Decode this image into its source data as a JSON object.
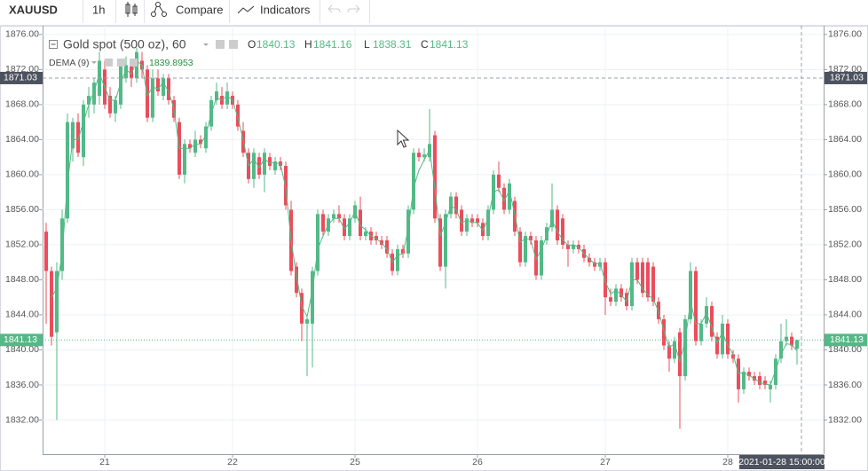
{
  "toolbar": {
    "symbol": "XAUUSD",
    "interval": "1h",
    "compare": "Compare",
    "indicators": "Indicators"
  },
  "chart_data": {
    "type": "candlestick",
    "title": "Gold spot (500 oz), 60",
    "ohlc_labels": [
      "O",
      "H",
      "L",
      "C"
    ],
    "indicator_name": "DEMA (9)",
    "up_color": "#53b987",
    "down_color": "#eb4d5c",
    "dema_color": "#53b987",
    "ylim": [
      1828.1,
      1877.0
    ],
    "yticks": [
      {
        "value": 1832,
        "label": "1832.00"
      },
      {
        "value": 1836,
        "label": "1836.00"
      },
      {
        "value": 1840,
        "label": "1840.00"
      },
      {
        "value": 1844,
        "label": "1844.00"
      },
      {
        "value": 1848,
        "label": "1848.00"
      },
      {
        "value": 1852,
        "label": "1852.00"
      },
      {
        "value": 1856,
        "label": "1856.00"
      },
      {
        "value": 1860,
        "label": "1860.00"
      },
      {
        "value": 1864,
        "label": "1864.00"
      },
      {
        "value": 1868,
        "label": "1868.00"
      },
      {
        "value": 1872,
        "label": "1872.00"
      },
      {
        "value": 1876,
        "label": "1876.00"
      }
    ],
    "grid": true,
    "crosshair": {
      "price": 1871.03,
      "time": "2021-01-28 15:00:00"
    },
    "categories": [
      null,
      null,
      null,
      null,
      null,
      null,
      null,
      null,
      null,
      null,
      null,
      "21",
      null,
      null,
      null,
      null,
      null,
      null,
      null,
      null,
      null,
      null,
      null,
      null,
      null,
      null,
      null,
      null,
      null,
      null,
      null,
      null,
      null,
      null,
      null,
      "22",
      null,
      null,
      null,
      null,
      null,
      null,
      null,
      null,
      null,
      null,
      null,
      null,
      null,
      null,
      null,
      null,
      null,
      null,
      null,
      null,
      null,
      null,
      "25",
      null,
      null,
      null,
      null,
      null,
      null,
      null,
      null,
      null,
      null,
      null,
      null,
      null,
      null,
      null,
      null,
      null,
      null,
      null,
      null,
      null,
      null,
      "26",
      null,
      null,
      null,
      null,
      null,
      null,
      null,
      null,
      null,
      null,
      null,
      null,
      null,
      null,
      null,
      null,
      null,
      null,
      null,
      null,
      null,
      null,
      null,
      "27",
      null,
      null,
      null,
      null,
      null,
      null,
      null,
      null,
      null,
      null,
      null,
      null,
      null,
      null,
      null,
      null,
      null,
      null,
      null,
      null,
      null,
      null,
      "28",
      null,
      null,
      null,
      null,
      null,
      null,
      null,
      null,
      null,
      null,
      null,
      null,
      null
    ],
    "candles": [
      [
        1853.5,
        1854.5,
        1843,
        1849
      ],
      [
        1849,
        1849.5,
        1840.5,
        1841.5
      ],
      [
        1842,
        1850,
        1832,
        1849
      ],
      [
        1849,
        1856,
        1848,
        1855
      ],
      [
        1855,
        1867,
        1854.5,
        1866
      ],
      [
        1863,
        1866.5,
        1861.5,
        1866
      ],
      [
        1866,
        1867,
        1862,
        1862.5
      ],
      [
        1862,
        1868.5,
        1861,
        1868
      ],
      [
        1868,
        1870,
        1866.5,
        1869
      ],
      [
        1868,
        1871,
        1867,
        1870.5
      ],
      [
        1869,
        1874,
        1868,
        1873
      ],
      [
        1872,
        1873,
        1867.5,
        1868
      ],
      [
        1869,
        1870,
        1866.5,
        1867
      ],
      [
        1867,
        1869,
        1866,
        1868.5
      ],
      [
        1868,
        1873,
        1867.5,
        1872.5
      ],
      [
        1871,
        1873.5,
        1870.5,
        1872.5
      ],
      [
        1872.5,
        1873,
        1870,
        1871
      ],
      [
        1871,
        1874.5,
        1870.5,
        1874
      ],
      [
        1873,
        1874,
        1871,
        1872
      ],
      [
        1872,
        1872.5,
        1866,
        1866.5
      ],
      [
        1866.5,
        1872,
        1866,
        1871
      ],
      [
        1871,
        1872,
        1869,
        1869.5
      ],
      [
        1869,
        1871.5,
        1868.5,
        1871
      ],
      [
        1871,
        1871.5,
        1868,
        1868.5
      ],
      [
        1868.5,
        1869,
        1866,
        1866.5
      ],
      [
        1866,
        1866.5,
        1859.5,
        1860
      ],
      [
        1860,
        1864,
        1859,
        1863.5
      ],
      [
        1863.5,
        1864,
        1862.5,
        1863
      ],
      [
        1862.5,
        1865,
        1862,
        1864
      ],
      [
        1864,
        1864.5,
        1863,
        1863.5
      ],
      [
        1863,
        1866,
        1862.5,
        1865.5
      ],
      [
        1865.5,
        1869,
        1865,
        1868.5
      ],
      [
        1868.5,
        1870.5,
        1868,
        1869.5
      ],
      [
        1869,
        1870,
        1867.5,
        1868
      ],
      [
        1868,
        1870.5,
        1867.5,
        1869.5
      ],
      [
        1869,
        1869.5,
        1867.5,
        1868
      ],
      [
        1868,
        1868.5,
        1865,
        1865.5
      ],
      [
        1865,
        1866,
        1862,
        1862.5
      ],
      [
        1862.5,
        1863,
        1859,
        1859.5
      ],
      [
        1859.5,
        1863,
        1858.5,
        1862.5
      ],
      [
        1862,
        1862.5,
        1859.5,
        1860
      ],
      [
        1860,
        1863,
        1858,
        1862.5
      ],
      [
        1862,
        1862.5,
        1860.5,
        1861
      ],
      [
        1860.5,
        1862,
        1860,
        1861.5
      ],
      [
        1861.5,
        1862,
        1860.5,
        1861
      ],
      [
        1861,
        1861.5,
        1856,
        1856.5
      ],
      [
        1856,
        1857,
        1848.5,
        1849
      ],
      [
        1849.5,
        1850,
        1846,
        1846.5
      ],
      [
        1846.5,
        1847,
        1841,
        1843
      ],
      [
        1843,
        1844,
        1837,
        1843.5
      ],
      [
        1843,
        1849.5,
        1838,
        1849
      ],
      [
        1849,
        1856,
        1848.5,
        1855.5
      ],
      [
        1855.5,
        1856,
        1853,
        1853.5
      ],
      [
        1853.5,
        1855.5,
        1853,
        1855
      ],
      [
        1855,
        1856,
        1854.5,
        1855.5
      ],
      [
        1855.5,
        1856.5,
        1854.5,
        1855
      ],
      [
        1855,
        1855.5,
        1852.5,
        1853
      ],
      [
        1853,
        1855.5,
        1852.5,
        1855
      ],
      [
        1855,
        1857,
        1854.5,
        1856.5
      ],
      [
        1856,
        1857.5,
        1852.5,
        1853
      ],
      [
        1853,
        1854,
        1852.5,
        1853.5
      ],
      [
        1853.5,
        1854,
        1852,
        1852.5
      ],
      [
        1853,
        1853.5,
        1852,
        1852.5
      ],
      [
        1852.5,
        1853,
        1851.5,
        1852
      ],
      [
        1852.5,
        1853,
        1850.5,
        1851
      ],
      [
        1851,
        1851.5,
        1848.5,
        1849
      ],
      [
        1849,
        1852,
        1848.5,
        1851.5
      ],
      [
        1851.5,
        1852,
        1850.5,
        1851
      ],
      [
        1851,
        1856.5,
        1850.5,
        1856
      ],
      [
        1856,
        1863,
        1855.5,
        1862.5
      ],
      [
        1862.5,
        1863,
        1861.5,
        1862
      ],
      [
        1862,
        1863,
        1861.5,
        1862.3
      ],
      [
        1862,
        1867.5,
        1861.5,
        1863.5
      ],
      [
        1864.5,
        1865,
        1854.5,
        1855
      ],
      [
        1855,
        1855.5,
        1849,
        1849.5
      ],
      [
        1849.5,
        1856,
        1847,
        1855.5
      ],
      [
        1855.5,
        1858,
        1855,
        1857.5
      ],
      [
        1857.5,
        1858,
        1855,
        1855.5
      ],
      [
        1856,
        1856.5,
        1853,
        1853.5
      ],
      [
        1853.5,
        1855.5,
        1853,
        1855
      ],
      [
        1855,
        1855.5,
        1854,
        1854.5
      ],
      [
        1855,
        1855.5,
        1854,
        1854.5
      ],
      [
        1854.5,
        1855,
        1852.5,
        1853
      ],
      [
        1853,
        1856.5,
        1852.5,
        1856
      ],
      [
        1856,
        1860.5,
        1855.5,
        1860
      ],
      [
        1860,
        1861.5,
        1858,
        1858.5
      ],
      [
        1858.5,
        1859,
        1855.5,
        1856
      ],
      [
        1856,
        1859.5,
        1855.5,
        1859
      ],
      [
        1857,
        1857.5,
        1853,
        1853.5
      ],
      [
        1853.5,
        1854,
        1849.5,
        1850
      ],
      [
        1850,
        1853.5,
        1849.5,
        1853
      ],
      [
        1853,
        1853.5,
        1852,
        1852.5
      ],
      [
        1852.5,
        1853,
        1848,
        1848.5
      ],
      [
        1848.5,
        1853,
        1848,
        1852.5
      ],
      [
        1852.5,
        1854.5,
        1852,
        1854
      ],
      [
        1854,
        1859,
        1853.5,
        1856
      ],
      [
        1856,
        1856.5,
        1852,
        1852.5
      ],
      [
        1855,
        1855.5,
        1851.5,
        1852
      ],
      [
        1852,
        1852.5,
        1849.5,
        1851.5
      ],
      [
        1851.5,
        1852.5,
        1851,
        1852
      ],
      [
        1852,
        1852.5,
        1851,
        1851.5
      ],
      [
        1851.5,
        1852,
        1850,
        1850.5
      ],
      [
        1850.5,
        1851,
        1849.5,
        1850
      ],
      [
        1850,
        1850.5,
        1849,
        1849.5
      ],
      [
        1849.5,
        1850.5,
        1849,
        1850
      ],
      [
        1850,
        1850.5,
        1844,
        1846
      ],
      [
        1846,
        1847,
        1845,
        1845.5
      ],
      [
        1845.5,
        1847.5,
        1845,
        1847
      ],
      [
        1847,
        1847.5,
        1845.5,
        1846
      ],
      [
        1846.5,
        1847,
        1844.5,
        1845
      ],
      [
        1845,
        1850.5,
        1844.5,
        1850
      ],
      [
        1850,
        1850.5,
        1847.5,
        1848
      ],
      [
        1850,
        1850.5,
        1846,
        1846.5
      ],
      [
        1850,
        1850.5,
        1845.5,
        1846
      ],
      [
        1849.5,
        1850,
        1845,
        1845.5
      ],
      [
        1845.5,
        1846,
        1843,
        1843.5
      ],
      [
        1843.5,
        1844,
        1840,
        1840.5
      ],
      [
        1840.5,
        1841,
        1837.5,
        1839
      ],
      [
        1839,
        1841.5,
        1838.5,
        1841
      ],
      [
        1842,
        1842.5,
        1831,
        1837
      ],
      [
        1837,
        1844,
        1836.5,
        1843.5
      ],
      [
        1843.5,
        1850,
        1843,
        1849
      ],
      [
        1849,
        1849.5,
        1840.5,
        1841
      ],
      [
        1841,
        1843.5,
        1840.5,
        1843
      ],
      [
        1843,
        1846,
        1842.5,
        1845
      ],
      [
        1845,
        1845.5,
        1841,
        1841.5
      ],
      [
        1841.5,
        1842,
        1839,
        1839.5
      ],
      [
        1839.5,
        1844,
        1839,
        1843
      ],
      [
        1843,
        1843.5,
        1839,
        1839.5
      ],
      [
        1839.5,
        1840,
        1838.5,
        1839
      ],
      [
        1839,
        1839.5,
        1834,
        1835.5
      ],
      [
        1835.5,
        1838,
        1835,
        1837.5
      ],
      [
        1837.5,
        1838,
        1836.5,
        1837
      ],
      [
        1837,
        1837.5,
        1836,
        1836.5
      ],
      [
        1837,
        1837.5,
        1835.5,
        1836
      ],
      [
        1836.5,
        1837,
        1835.5,
        1836
      ],
      [
        1835.5,
        1836.5,
        1834,
        1836
      ],
      [
        1836,
        1839.5,
        1835.5,
        1839
      ],
      [
        1839,
        1843,
        1838.5,
        1841
      ],
      [
        1841,
        1843.5,
        1840.5,
        1841.5
      ],
      [
        1841.5,
        1842,
        1840,
        1840.5
      ],
      [
        1840.13,
        1841.16,
        1838.31,
        1841.13
      ]
    ],
    "dema": [
      null,
      1846,
      1847,
      1851,
      1859,
      1864,
      1864,
      1866,
      1868,
      1869.5,
      1871.5,
      1870,
      1868.5,
      1868.5,
      1870.5,
      1872,
      1871.5,
      1873,
      1872.5,
      1869,
      1870,
      1869.8,
      1870.5,
      1869.5,
      1867.5,
      1863,
      1863,
      1863,
      1863.5,
      1863.5,
      1864.5,
      1867,
      1868.8,
      1868.5,
      1869,
      1868.5,
      1866.5,
      1864,
      1861,
      1861.8,
      1860.8,
      1861.8,
      1861.3,
      1861.4,
      1861.2,
      1858.5,
      1852.5,
      1848.5,
      1845,
      1843.8,
      1846.8,
      1851.5,
      1853,
      1854.3,
      1855,
      1855,
      1853.8,
      1854.5,
      1855.8,
      1854.2,
      1853.7,
      1853,
      1852.7,
      1852.2,
      1851.5,
      1850,
      1850.8,
      1851,
      1853.8,
      1858.5,
      1860.5,
      1861.7,
      1862.8,
      1858.5,
      1853,
      1854.5,
      1856.5,
      1856,
      1854.5,
      1854.8,
      1854.6,
      1854.5,
      1853.6,
      1855,
      1858,
      1858.3,
      1857,
      1858.2,
      1855.5,
      1852.3,
      1852.7,
      1852.6,
      1850.3,
      1851.5,
      1853,
      1854.8,
      1853.5,
      1852.6,
      1851.9,
      1852,
      1851.7,
      1851,
      1850.4,
      1849.8,
      1849.9,
      1847.8,
      1846.4,
      1846.8,
      1846.3,
      1845.5,
      1848,
      1848,
      1847,
      1846.3,
      1845.8,
      1844.4,
      1842.2,
      1840.3,
      1840.7,
      1838.7,
      1841,
      1845.5,
      1843,
      1843,
      1844.2,
      1842.6,
      1840.8,
      1842,
      1840.5,
      1839.5,
      1837.3,
      1837.4,
      1837.1,
      1836.7,
      1836.3,
      1836.1,
      1836,
      1837.7,
      1839.5,
      1840.7,
      1840.6,
      1839.8953
    ]
  }
}
